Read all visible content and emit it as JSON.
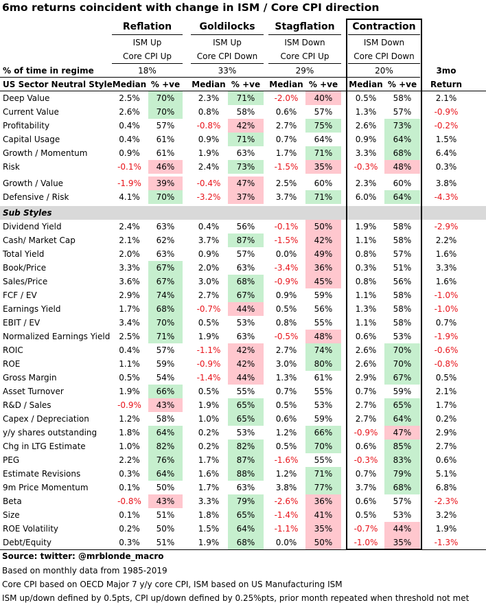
{
  "title": "6mo returns coincident with change in ISM / Core CPI direction",
  "regimes": [
    {
      "name": "Reflation",
      "ism": "ISM Up",
      "cpi": "Core CPI Up",
      "pct_time": "18%"
    },
    {
      "name": "Goldilocks",
      "ism": "ISM Up",
      "cpi": "Core CPI Down",
      "pct_time": "33%"
    },
    {
      "name": "Stagflation",
      "ism": "ISM Down",
      "cpi": "Core CPI Up",
      "pct_time": "29%"
    },
    {
      "name": "Contraction",
      "ism": "ISM Down",
      "cpi": "Core CPI Down",
      "pct_time": "20%"
    }
  ],
  "pct_time_label": "% of time in regime",
  "style_header": "US Sector Neutral Style",
  "median_label": "Median",
  "pve_label": "% +ve",
  "return_header_1": "3mo",
  "return_header_2": "Return",
  "sub_styles_label": "Sub Styles",
  "colors": {
    "positive_bg": "#c6efce",
    "negative_bg": "#ffc7ce",
    "negative_text": "#e8131a",
    "band": "#d9d9d9"
  },
  "rows": [
    {
      "label": "Deep Value",
      "cells": [
        [
          "2.5%",
          "n"
        ],
        [
          "70%",
          "g"
        ],
        [
          "2.3%",
          "n"
        ],
        [
          "71%",
          "g"
        ],
        [
          "-2.0%",
          "n"
        ],
        [
          "40%",
          "r"
        ],
        [
          "0.5%",
          "n"
        ],
        [
          "58%",
          "n"
        ]
      ],
      "ret": "2.1%"
    },
    {
      "label": "Current Value",
      "cells": [
        [
          "2.6%",
          "n"
        ],
        [
          "70%",
          "g"
        ],
        [
          "0.8%",
          "n"
        ],
        [
          "58%",
          "n"
        ],
        [
          "0.6%",
          "n"
        ],
        [
          "57%",
          "n"
        ],
        [
          "1.3%",
          "n"
        ],
        [
          "57%",
          "n"
        ]
      ],
      "ret": "-0.9%"
    },
    {
      "label": "Profitability",
      "cells": [
        [
          "0.4%",
          "n"
        ],
        [
          "57%",
          "n"
        ],
        [
          "-0.8%",
          "n"
        ],
        [
          "42%",
          "r"
        ],
        [
          "2.7%",
          "n"
        ],
        [
          "75%",
          "g"
        ],
        [
          "2.6%",
          "n"
        ],
        [
          "73%",
          "g"
        ]
      ],
      "ret": "-0.2%"
    },
    {
      "label": "Capital Usage",
      "cells": [
        [
          "0.4%",
          "n"
        ],
        [
          "61%",
          "n"
        ],
        [
          "0.9%",
          "n"
        ],
        [
          "71%",
          "g"
        ],
        [
          "0.7%",
          "n"
        ],
        [
          "64%",
          "n"
        ],
        [
          "0.9%",
          "n"
        ],
        [
          "64%",
          "g"
        ]
      ],
      "ret": "1.5%"
    },
    {
      "label": "Growth / Momentum",
      "cells": [
        [
          "0.9%",
          "n"
        ],
        [
          "61%",
          "n"
        ],
        [
          "1.9%",
          "n"
        ],
        [
          "63%",
          "n"
        ],
        [
          "1.7%",
          "n"
        ],
        [
          "71%",
          "g"
        ],
        [
          "3.3%",
          "n"
        ],
        [
          "68%",
          "g"
        ]
      ],
      "ret": "6.4%"
    },
    {
      "label": "Risk",
      "cells": [
        [
          "-0.1%",
          "n"
        ],
        [
          "46%",
          "r"
        ],
        [
          "2.4%",
          "n"
        ],
        [
          "73%",
          "g"
        ],
        [
          "-1.5%",
          "n"
        ],
        [
          "35%",
          "r"
        ],
        [
          "-0.3%",
          "n"
        ],
        [
          "48%",
          "r"
        ]
      ],
      "ret": "0.3%",
      "gap_after": true
    },
    {
      "label": "Growth / Value",
      "cells": [
        [
          "-1.9%",
          "n"
        ],
        [
          "39%",
          "r"
        ],
        [
          "-0.4%",
          "n"
        ],
        [
          "47%",
          "r"
        ],
        [
          "2.5%",
          "n"
        ],
        [
          "60%",
          "n"
        ],
        [
          "2.3%",
          "n"
        ],
        [
          "60%",
          "n"
        ]
      ],
      "ret": "3.8%"
    },
    {
      "label": "Defensive / Risk",
      "cells": [
        [
          "4.1%",
          "n"
        ],
        [
          "70%",
          "g"
        ],
        [
          "-3.2%",
          "n"
        ],
        [
          "37%",
          "r"
        ],
        [
          "3.7%",
          "n"
        ],
        [
          "71%",
          "g"
        ],
        [
          "6.0%",
          "n"
        ],
        [
          "64%",
          "g"
        ]
      ],
      "ret": "-4.3%"
    }
  ],
  "sub_rows": [
    {
      "label": "Dividend Yield",
      "cells": [
        [
          "2.4%",
          "n"
        ],
        [
          "63%",
          "n"
        ],
        [
          "0.4%",
          "n"
        ],
        [
          "56%",
          "n"
        ],
        [
          "-0.1%",
          "n"
        ],
        [
          "50%",
          "r"
        ],
        [
          "1.9%",
          "n"
        ],
        [
          "58%",
          "n"
        ]
      ],
      "ret": "-2.9%"
    },
    {
      "label": "Cash/ Market Cap",
      "cells": [
        [
          "2.1%",
          "n"
        ],
        [
          "62%",
          "n"
        ],
        [
          "3.7%",
          "n"
        ],
        [
          "87%",
          "g"
        ],
        [
          "-1.5%",
          "n"
        ],
        [
          "42%",
          "r"
        ],
        [
          "1.1%",
          "n"
        ],
        [
          "58%",
          "n"
        ]
      ],
      "ret": "2.2%"
    },
    {
      "label": "Total Yield",
      "cells": [
        [
          "2.0%",
          "n"
        ],
        [
          "63%",
          "n"
        ],
        [
          "0.9%",
          "n"
        ],
        [
          "57%",
          "n"
        ],
        [
          "0.0%",
          "n"
        ],
        [
          "49%",
          "r"
        ],
        [
          "0.8%",
          "n"
        ],
        [
          "57%",
          "n"
        ]
      ],
      "ret": "1.6%"
    },
    {
      "label": "Book/Price",
      "cells": [
        [
          "3.3%",
          "n"
        ],
        [
          "67%",
          "g"
        ],
        [
          "2.0%",
          "n"
        ],
        [
          "63%",
          "n"
        ],
        [
          "-3.4%",
          "n"
        ],
        [
          "36%",
          "r"
        ],
        [
          "0.3%",
          "n"
        ],
        [
          "51%",
          "n"
        ]
      ],
      "ret": "3.3%"
    },
    {
      "label": "Sales/Price",
      "cells": [
        [
          "3.6%",
          "n"
        ],
        [
          "67%",
          "g"
        ],
        [
          "3.0%",
          "n"
        ],
        [
          "68%",
          "g"
        ],
        [
          "-0.9%",
          "n"
        ],
        [
          "45%",
          "r"
        ],
        [
          "0.8%",
          "n"
        ],
        [
          "56%",
          "n"
        ]
      ],
      "ret": "1.6%"
    },
    {
      "label": "FCF / EV",
      "cells": [
        [
          "2.9%",
          "n"
        ],
        [
          "74%",
          "g"
        ],
        [
          "2.7%",
          "n"
        ],
        [
          "67%",
          "g"
        ],
        [
          "0.9%",
          "n"
        ],
        [
          "59%",
          "n"
        ],
        [
          "1.1%",
          "n"
        ],
        [
          "58%",
          "n"
        ]
      ],
      "ret": "-1.0%"
    },
    {
      "label": "Earnings Yield",
      "cells": [
        [
          "1.7%",
          "n"
        ],
        [
          "68%",
          "g"
        ],
        [
          "-0.7%",
          "n"
        ],
        [
          "44%",
          "r"
        ],
        [
          "0.5%",
          "n"
        ],
        [
          "56%",
          "n"
        ],
        [
          "1.3%",
          "n"
        ],
        [
          "58%",
          "n"
        ]
      ],
      "ret": "-1.0%"
    },
    {
      "label": "EBIT / EV",
      "cells": [
        [
          "3.4%",
          "n"
        ],
        [
          "70%",
          "g"
        ],
        [
          "0.5%",
          "n"
        ],
        [
          "53%",
          "n"
        ],
        [
          "0.8%",
          "n"
        ],
        [
          "55%",
          "n"
        ],
        [
          "1.1%",
          "n"
        ],
        [
          "58%",
          "n"
        ]
      ],
      "ret": "0.7%"
    },
    {
      "label": "Normalized Earnings Yield",
      "cells": [
        [
          "2.5%",
          "n"
        ],
        [
          "71%",
          "g"
        ],
        [
          "1.9%",
          "n"
        ],
        [
          "63%",
          "n"
        ],
        [
          "-0.5%",
          "n"
        ],
        [
          "48%",
          "r"
        ],
        [
          "0.6%",
          "n"
        ],
        [
          "53%",
          "n"
        ]
      ],
      "ret": "-1.9%"
    },
    {
      "label": "ROIC",
      "cells": [
        [
          "0.4%",
          "n"
        ],
        [
          "57%",
          "n"
        ],
        [
          "-1.1%",
          "n"
        ],
        [
          "42%",
          "r"
        ],
        [
          "2.7%",
          "n"
        ],
        [
          "74%",
          "g"
        ],
        [
          "2.6%",
          "n"
        ],
        [
          "70%",
          "g"
        ]
      ],
      "ret": "-0.6%"
    },
    {
      "label": "ROE",
      "cells": [
        [
          "1.1%",
          "n"
        ],
        [
          "59%",
          "n"
        ],
        [
          "-0.9%",
          "n"
        ],
        [
          "42%",
          "r"
        ],
        [
          "3.0%",
          "n"
        ],
        [
          "80%",
          "g"
        ],
        [
          "2.6%",
          "n"
        ],
        [
          "70%",
          "g"
        ]
      ],
      "ret": "-0.8%"
    },
    {
      "label": "Gross Margin",
      "cells": [
        [
          "0.5%",
          "n"
        ],
        [
          "54%",
          "n"
        ],
        [
          "-1.4%",
          "n"
        ],
        [
          "44%",
          "r"
        ],
        [
          "1.3%",
          "n"
        ],
        [
          "61%",
          "n"
        ],
        [
          "2.9%",
          "n"
        ],
        [
          "67%",
          "g"
        ]
      ],
      "ret": "0.5%"
    },
    {
      "label": "Asset Turnover",
      "cells": [
        [
          "1.9%",
          "n"
        ],
        [
          "66%",
          "g"
        ],
        [
          "0.5%",
          "n"
        ],
        [
          "55%",
          "n"
        ],
        [
          "0.7%",
          "n"
        ],
        [
          "55%",
          "n"
        ],
        [
          "0.7%",
          "n"
        ],
        [
          "59%",
          "n"
        ]
      ],
      "ret": "2.1%"
    },
    {
      "label": "R&D / Sales",
      "cells": [
        [
          "-0.9%",
          "n"
        ],
        [
          "43%",
          "r"
        ],
        [
          "1.9%",
          "n"
        ],
        [
          "65%",
          "g"
        ],
        [
          "0.5%",
          "n"
        ],
        [
          "53%",
          "n"
        ],
        [
          "2.7%",
          "n"
        ],
        [
          "65%",
          "g"
        ]
      ],
      "ret": "1.7%"
    },
    {
      "label": "Capex / Depreciation",
      "cells": [
        [
          "1.2%",
          "n"
        ],
        [
          "58%",
          "n"
        ],
        [
          "1.0%",
          "n"
        ],
        [
          "65%",
          "g"
        ],
        [
          "0.6%",
          "n"
        ],
        [
          "59%",
          "n"
        ],
        [
          "2.7%",
          "n"
        ],
        [
          "64%",
          "g"
        ]
      ],
      "ret": "0.2%"
    },
    {
      "label": "y/y shares outstanding",
      "cells": [
        [
          "1.8%",
          "n"
        ],
        [
          "64%",
          "g"
        ],
        [
          "0.2%",
          "n"
        ],
        [
          "53%",
          "n"
        ],
        [
          "1.2%",
          "n"
        ],
        [
          "66%",
          "g"
        ],
        [
          "-0.9%",
          "n"
        ],
        [
          "47%",
          "r"
        ]
      ],
      "ret": "2.9%"
    },
    {
      "label": "Chg in LTG Estimate",
      "cells": [
        [
          "1.0%",
          "n"
        ],
        [
          "82%",
          "g"
        ],
        [
          "0.2%",
          "n"
        ],
        [
          "82%",
          "g"
        ],
        [
          "0.5%",
          "n"
        ],
        [
          "70%",
          "g"
        ],
        [
          "0.6%",
          "n"
        ],
        [
          "85%",
          "g"
        ]
      ],
      "ret": "2.7%"
    },
    {
      "label": "PEG",
      "cells": [
        [
          "2.2%",
          "n"
        ],
        [
          "76%",
          "g"
        ],
        [
          "1.7%",
          "n"
        ],
        [
          "87%",
          "g"
        ],
        [
          "-1.6%",
          "n"
        ],
        [
          "55%",
          "n"
        ],
        [
          "-0.3%",
          "n"
        ],
        [
          "83%",
          "g"
        ]
      ],
      "ret": "0.6%"
    },
    {
      "label": "Estimate Revisions",
      "cells": [
        [
          "0.3%",
          "n"
        ],
        [
          "64%",
          "g"
        ],
        [
          "1.6%",
          "n"
        ],
        [
          "88%",
          "g"
        ],
        [
          "1.2%",
          "n"
        ],
        [
          "71%",
          "g"
        ],
        [
          "0.7%",
          "n"
        ],
        [
          "79%",
          "g"
        ]
      ],
      "ret": "5.1%"
    },
    {
      "label": "9m Price Momentum",
      "cells": [
        [
          "0.1%",
          "n"
        ],
        [
          "50%",
          "n"
        ],
        [
          "1.7%",
          "n"
        ],
        [
          "63%",
          "n"
        ],
        [
          "3.8%",
          "n"
        ],
        [
          "77%",
          "g"
        ],
        [
          "3.7%",
          "n"
        ],
        [
          "68%",
          "g"
        ]
      ],
      "ret": "6.8%"
    },
    {
      "label": "Beta",
      "cells": [
        [
          "-0.8%",
          "n"
        ],
        [
          "43%",
          "r"
        ],
        [
          "3.3%",
          "n"
        ],
        [
          "79%",
          "g"
        ],
        [
          "-2.6%",
          "n"
        ],
        [
          "36%",
          "r"
        ],
        [
          "0.6%",
          "n"
        ],
        [
          "57%",
          "n"
        ]
      ],
      "ret": "-2.3%"
    },
    {
      "label": "Size",
      "cells": [
        [
          "0.1%",
          "n"
        ],
        [
          "51%",
          "n"
        ],
        [
          "1.8%",
          "n"
        ],
        [
          "65%",
          "g"
        ],
        [
          "-1.4%",
          "n"
        ],
        [
          "41%",
          "r"
        ],
        [
          "0.5%",
          "n"
        ],
        [
          "53%",
          "n"
        ]
      ],
      "ret": "3.2%"
    },
    {
      "label": "ROE Volatility",
      "cells": [
        [
          "0.2%",
          "n"
        ],
        [
          "50%",
          "n"
        ],
        [
          "1.5%",
          "n"
        ],
        [
          "64%",
          "g"
        ],
        [
          "-1.1%",
          "n"
        ],
        [
          "35%",
          "r"
        ],
        [
          "-0.7%",
          "n"
        ],
        [
          "44%",
          "r"
        ]
      ],
      "ret": "1.9%"
    },
    {
      "label": "Debt/Equity",
      "cells": [
        [
          "0.3%",
          "n"
        ],
        [
          "51%",
          "n"
        ],
        [
          "1.9%",
          "n"
        ],
        [
          "68%",
          "g"
        ],
        [
          "0.0%",
          "n"
        ],
        [
          "50%",
          "r"
        ],
        [
          "-1.0%",
          "n"
        ],
        [
          "35%",
          "r"
        ]
      ],
      "ret": "-1.3%"
    }
  ],
  "footer": {
    "source": "Source: twitter: @mrblonde_macro",
    "lines": [
      "Based on monthly data from 1985-2019",
      "Core CPI based on OECD Major 7 y/y core CPI, ISM based on US Manufacturing ISM",
      "ISM up/down defined by 0.5pts, CPI up/down defined by 0.25%pts, prior month repeated when threshold not met"
    ]
  }
}
